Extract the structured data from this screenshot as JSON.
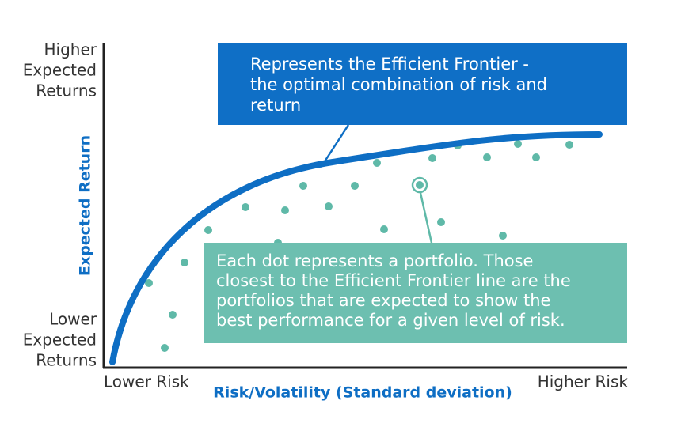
{
  "y_axis": {
    "title": "Expected Return",
    "top_label": [
      "Higher",
      "Expected",
      "Returns"
    ],
    "bottom_label": [
      "Lower",
      "Expected",
      "Returns"
    ]
  },
  "x_axis": {
    "title": "Risk/Volatility (Standard deviation)",
    "left_label": "Lower Risk",
    "right_label": "Higher Risk"
  },
  "callouts": {
    "frontier": [
      "Represents the Efficient Frontier -",
      "the optimal combination of risk and",
      "return"
    ],
    "dots": [
      "Each dot represents a portfolio. Those",
      "closest to the Efficient Frontier line are the",
      "portfolios that are expected to show the",
      "best performance for a given level of risk."
    ]
  }
}
